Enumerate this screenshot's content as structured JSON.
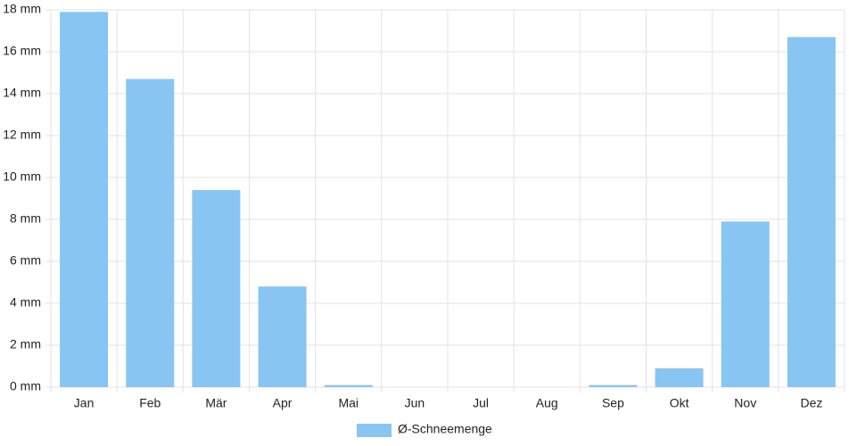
{
  "chart_data": {
    "type": "bar",
    "categories": [
      "Jan",
      "Feb",
      "Mär",
      "Apr",
      "Mai",
      "Jun",
      "Jul",
      "Aug",
      "Sep",
      "Okt",
      "Nov",
      "Dez"
    ],
    "series": [
      {
        "name": "Ø-Schneemenge",
        "color": "#88c5f2",
        "values": [
          17.9,
          14.7,
          9.4,
          4.8,
          0.1,
          0,
          0,
          0,
          0.1,
          0.9,
          7.9,
          16.7
        ]
      }
    ],
    "ylim": [
      0,
      18
    ],
    "yticks": [
      {
        "value": 0,
        "label": "0 mm"
      },
      {
        "value": 2,
        "label": "2 mm"
      },
      {
        "value": 4,
        "label": "4 mm"
      },
      {
        "value": 6,
        "label": "6 mm"
      },
      {
        "value": 8,
        "label": "8 mm"
      },
      {
        "value": 10,
        "label": "10 mm"
      },
      {
        "value": 12,
        "label": "12 mm"
      },
      {
        "value": 14,
        "label": "14 mm"
      },
      {
        "value": 16,
        "label": "16 mm"
      },
      {
        "value": 18,
        "label": "18 mm"
      }
    ],
    "grid": true,
    "legend": "bottom"
  }
}
